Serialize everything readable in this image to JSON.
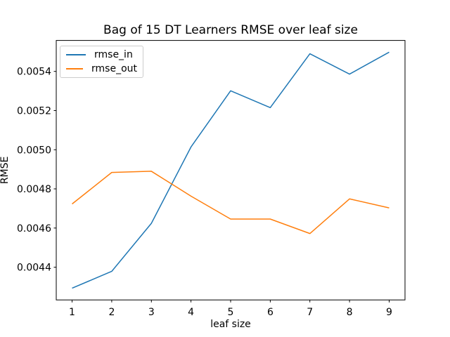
{
  "figure": {
    "background": "#ffffff",
    "text_color": "#000000",
    "axis_color": "#000000",
    "legend_border_color": "#cccccc"
  },
  "chart_data": {
    "type": "line",
    "title": "Bag of 15 DT Learners RMSE over leaf size",
    "xlabel": "leaf size",
    "ylabel": "RMSE",
    "x": [
      1,
      2,
      3,
      4,
      5,
      6,
      7,
      8,
      9
    ],
    "series": [
      {
        "name": "rmse_in",
        "color": "#1f77b4",
        "values": [
          0.004293,
          0.004379,
          0.004624,
          0.005014,
          0.005301,
          0.005215,
          0.00549,
          0.005386,
          0.005498
        ]
      },
      {
        "name": "rmse_out",
        "color": "#ff7f0e",
        "values": [
          0.004723,
          0.004884,
          0.00489,
          0.004763,
          0.004646,
          0.004646,
          0.004572,
          0.004749,
          0.004703
        ]
      }
    ],
    "xlim": [
      0.6,
      9.4
    ],
    "ylim": [
      0.004233,
      0.005558
    ],
    "xticks": [
      1,
      2,
      3,
      4,
      5,
      6,
      7,
      8,
      9
    ],
    "xtick_labels": [
      "1",
      "2",
      "3",
      "4",
      "5",
      "6",
      "7",
      "8",
      "9"
    ],
    "yticks": [
      0.0044,
      0.0046,
      0.0048,
      0.005,
      0.0052,
      0.0054
    ],
    "ytick_labels": [
      "0.0044",
      "0.0046",
      "0.0048",
      "0.0050",
      "0.0052",
      "0.0054"
    ],
    "grid": false,
    "legend_position": "upper left"
  }
}
